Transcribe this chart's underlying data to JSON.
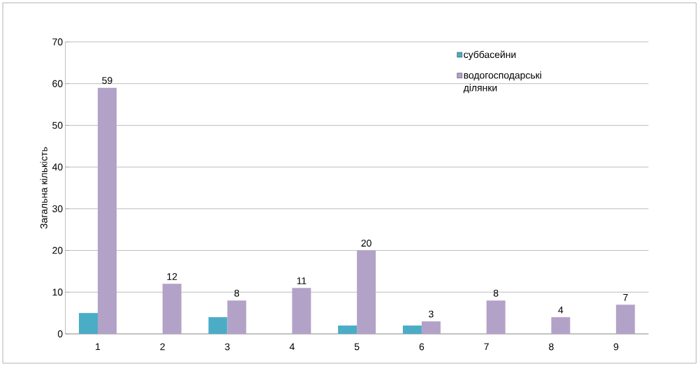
{
  "chart_data": {
    "type": "bar",
    "ylabel": "Загальна кількість",
    "categories": [
      "1",
      "2",
      "3",
      "4",
      "5",
      "6",
      "7",
      "8",
      "9"
    ],
    "series": [
      {
        "name": "суббасейни",
        "color": "#4bacc6",
        "values": [
          5,
          null,
          4,
          null,
          2,
          2,
          null,
          null,
          null
        ]
      },
      {
        "name": "водогосподарські ділянки",
        "color": "#b3a2c7",
        "values": [
          59,
          12,
          8,
          11,
          20,
          3,
          8,
          4,
          7
        ],
        "value_labels": [
          "59",
          "12",
          "8",
          "11",
          "20",
          "3",
          "8",
          "4",
          "7"
        ]
      }
    ],
    "ylim": [
      0,
      70
    ],
    "yticks": [
      0,
      10,
      20,
      30,
      40,
      50,
      60,
      70
    ],
    "grid": "y",
    "legend": "top right"
  }
}
